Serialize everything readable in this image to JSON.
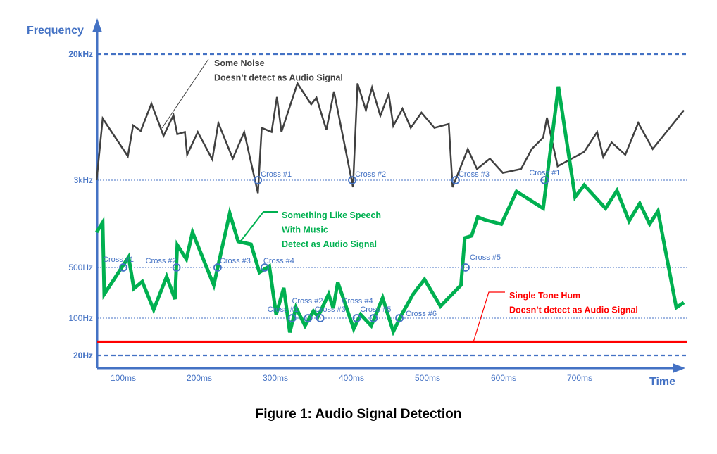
{
  "caption": "Figure 1: Audio Signal Detection",
  "chart_data": {
    "type": "line",
    "xlabel": "Time",
    "ylabel": "Frequency",
    "x_ticks": [
      {
        "value": 100,
        "label": "100ms"
      },
      {
        "value": 200,
        "label": "200ms"
      },
      {
        "value": 300,
        "label": "300ms"
      },
      {
        "value": 400,
        "label": "400ms"
      },
      {
        "value": 500,
        "label": "500ms"
      },
      {
        "value": 600,
        "label": "600ms"
      },
      {
        "value": 700,
        "label": "700ms"
      }
    ],
    "y_scale": "nonlinear (log-like)",
    "y_levels": [
      {
        "value": 20000,
        "label": "20kHz",
        "style": "dashed-thick"
      },
      {
        "value": 3000,
        "label": "3kHz",
        "style": "dotted"
      },
      {
        "value": 500,
        "label": "500Hz",
        "style": "dotted"
      },
      {
        "value": 100,
        "label": "100Hz",
        "style": "dotted"
      },
      {
        "value": 20,
        "label": "20Hz",
        "style": "dashed-thick"
      }
    ],
    "colors": {
      "axis": "#4472c4",
      "noise": "#404040",
      "speech": "#00b050",
      "hum": "#ff0000",
      "cross": "#4472c4"
    },
    "series": [
      {
        "key": "noise",
        "color": "#404040",
        "x": [
          65,
          73,
          106,
          113,
          123,
          137,
          153,
          166,
          171,
          181,
          184,
          198,
          217,
          225,
          244,
          259,
          277,
          282,
          295,
          302,
          308,
          329,
          347,
          354,
          367,
          377,
          402,
          408,
          419,
          427,
          438,
          449,
          455,
          467,
          478,
          492,
          509,
          528,
          533,
          553,
          565,
          582,
          599,
          623,
          637,
          652,
          657,
          671,
          706,
          723,
          731,
          742,
          760,
          777,
          796,
          837
        ],
        "y": [
          3000,
          7600,
          4300,
          6850,
          6300,
          9500,
          5850,
          8000,
          6000,
          6200,
          4400,
          6200,
          4100,
          7100,
          4150,
          6200,
          2300,
          6600,
          6200,
          10500,
          6200,
          12900,
          9400,
          10400,
          6400,
          11400,
          2600,
          12900,
          8600,
          12100,
          7900,
          11000,
          6800,
          8800,
          6600,
          8300,
          6600,
          7000,
          2600,
          4800,
          3550,
          4150,
          3350,
          3550,
          4800,
          5700,
          7700,
          3700,
          4600,
          6200,
          4250,
          5300,
          4400,
          7100,
          4800,
          8600
        ]
      },
      {
        "key": "speech",
        "color": "#00b050",
        "x": [
          65,
          73,
          75,
          107,
          114,
          125,
          140,
          157,
          168,
          171,
          183,
          191,
          219,
          240,
          251,
          268,
          279,
          292,
          301,
          311,
          319,
          327,
          339,
          350,
          356,
          370,
          376,
          382,
          403,
          412,
          426,
          441,
          455,
          466,
          481,
          496,
          517,
          544,
          549,
          558,
          566,
          575,
          597,
          617,
          652,
          672,
          694,
          706,
          734,
          749,
          765,
          779,
          792,
          803,
          827,
          837
        ],
        "y": [
          1030,
          1260,
          214,
          620,
          256,
          320,
          131,
          374,
          183,
          793,
          594,
          1030,
          286,
          1520,
          853,
          805,
          428,
          514,
          112,
          262,
          54,
          140,
          72,
          125,
          105,
          214,
          137,
          313,
          63,
          112,
          72,
          191,
          56,
          112,
          214,
          342,
          146,
          286,
          917,
          958,
          1410,
          1330,
          1220,
          2380,
          1680,
          12300,
          2120,
          2710,
          1680,
          2420,
          1300,
          1860,
          1220,
          1590,
          140,
          164
        ]
      },
      {
        "key": "hum",
        "color": "#ff0000",
        "x": [
          65,
          837
        ],
        "y": [
          36,
          36
        ]
      }
    ],
    "crossings": [
      {
        "label": "Cross #1",
        "x": 277,
        "y": 3000
      },
      {
        "label": "Cross #2",
        "x": 401,
        "y": 3000
      },
      {
        "label": "Cross #3",
        "x": 537,
        "y": 3000
      },
      {
        "label": "Cross #1",
        "x": 654,
        "y": 3000
      },
      {
        "label": "Cross #1",
        "x": 100,
        "y": 500
      },
      {
        "label": "Cross #2",
        "x": 170,
        "y": 500
      },
      {
        "label": "Cross #3",
        "x": 224,
        "y": 500
      },
      {
        "label": "Cross #4",
        "x": 286,
        "y": 500
      },
      {
        "label": "Cross #5",
        "x": 550,
        "y": 500
      },
      {
        "label": "Cross #1",
        "x": 322,
        "y": 100
      },
      {
        "label": "Cross #2",
        "x": 343,
        "y": 100
      },
      {
        "label": "Cross #3",
        "x": 359,
        "y": 100
      },
      {
        "label": "Cross #4",
        "x": 407,
        "y": 100
      },
      {
        "label": "Cross #5",
        "x": 429,
        "y": 100
      },
      {
        "label": "Cross #6",
        "x": 463,
        "y": 100
      }
    ],
    "annotations": [
      {
        "series": "noise",
        "lines": [
          "Some Noise",
          "Doesn’t detect as Audio Signal"
        ],
        "color": "#404040"
      },
      {
        "series": "speech",
        "lines": [
          "Something Like Speech",
          "With Music",
          "Detect as Audio Signal"
        ],
        "color": "#00b050"
      },
      {
        "series": "hum",
        "lines": [
          "Single Tone Hum",
          "Doesn’t detect as Audio Signal"
        ],
        "color": "#ff0000"
      }
    ]
  }
}
